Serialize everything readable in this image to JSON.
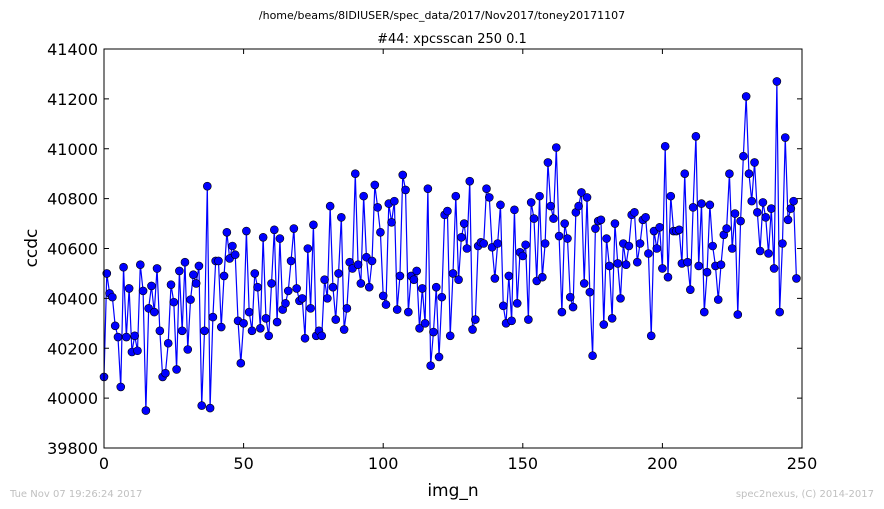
{
  "chart_data": {
    "type": "line",
    "suptitle": "/home/beams/8IDIUSER/spec_data/2017/Nov2017/toney20171107",
    "title": "#44: xpcsscan 250 0.1",
    "xlabel": "img_n",
    "ylabel": "ccdc",
    "xlim": [
      0,
      250
    ],
    "ylim": [
      39800,
      41400
    ],
    "xticks": [
      "0",
      "50",
      "100",
      "150",
      "200",
      "250"
    ],
    "yticks": [
      "39800",
      "40000",
      "40200",
      "40400",
      "40600",
      "40800",
      "41000",
      "41200",
      "41400"
    ],
    "grid": false,
    "line_color": "#0000ff",
    "marker": "circle",
    "series": [
      {
        "values": [
          40085,
          40500,
          40420,
          40405,
          40290,
          40245,
          40045,
          40525,
          40245,
          40440,
          40185,
          40250,
          40190,
          40535,
          40430,
          39950,
          40360,
          40450,
          40345,
          40520,
          40270,
          40085,
          40100,
          40220,
          40455,
          40385,
          40115,
          40510,
          40270,
          40545,
          40195,
          40395,
          40495,
          40460,
          40530,
          39970,
          40270,
          40850,
          39960,
          40325,
          40550,
          40550,
          40285,
          40490,
          40665,
          40560,
          40610,
          40575,
          40310,
          40140,
          40300,
          40670,
          40345,
          40270,
          40500,
          40445,
          40280,
          40645,
          40320,
          40250,
          40460,
          40675,
          40305,
          40640,
          40355,
          40380,
          40430,
          40550,
          40680,
          40440,
          40390,
          40400,
          40240,
          40600,
          40360,
          40695,
          40250,
          40270,
          40250,
          40475,
          40400,
          40770,
          40445,
          40315,
          40500,
          40725,
          40275,
          40360,
          40545,
          40520,
          40900,
          40535,
          40460,
          40810,
          40565,
          40445,
          40550,
          40855,
          40765,
          40665,
          40410,
          40375,
          40780,
          40705,
          40790,
          40355,
          40490,
          40895,
          40835,
          40345,
          40490,
          40475,
          40510,
          40280,
          40440,
          40300,
          40840,
          40130,
          40265,
          40445,
          40165,
          40405,
          40735,
          40750,
          40250,
          40500,
          40810,
          40475,
          40645,
          40700,
          40600,
          40870,
          40275,
          40315,
          40610,
          40625,
          40620,
          40840,
          40805,
          40605,
          40480,
          40620,
          40775,
          40370,
          40300,
          40490,
          40310,
          40755,
          40380,
          40585,
          40570,
          40615,
          40315,
          40785,
          40720,
          40470,
          40810,
          40485,
          40620,
          40945,
          40770,
          40720,
          41005,
          40650,
          40345,
          40700,
          40640,
          40405,
          40365,
          40745,
          40770,
          40825,
          40460,
          40805,
          40425,
          40170,
          40680,
          40710,
          40715,
          40295,
          40640,
          40530,
          40320,
          40700,
          40540,
          40400,
          40620,
          40535,
          40610,
          40735,
          40745,
          40545,
          40620,
          40715,
          40725,
          40580,
          40250,
          40670,
          40600,
          40685,
          40520,
          41010,
          40485,
          40810,
          40670,
          40670,
          40675,
          40540,
          40900,
          40545,
          40435,
          40765,
          41050,
          40530,
          40780,
          40345,
          40505,
          40775,
          40610,
          40530,
          40395,
          40535,
          40655,
          40680,
          40900,
          40600,
          40740,
          40335,
          40710,
          40970,
          41210,
          40900,
          40790,
          40945,
          40745,
          40590,
          40785,
          40725,
          40580,
          40760,
          40520,
          41270,
          40345,
          40620,
          41045,
          40715,
          40760,
          40790,
          40480
        ]
      }
    ]
  },
  "footer": {
    "left": "Tue Nov 07 19:26:24 2017",
    "right": "spec2nexus, (C) 2014-2017"
  }
}
